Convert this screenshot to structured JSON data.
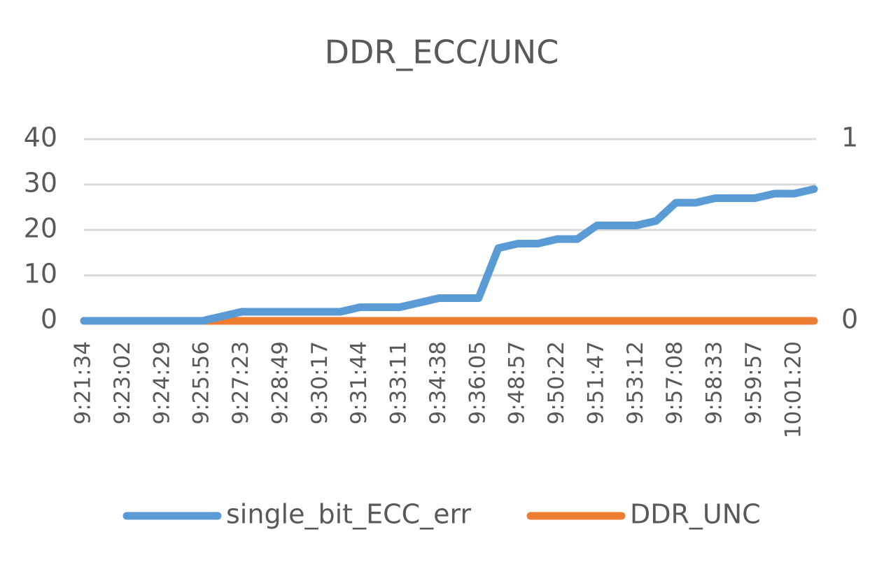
{
  "chart_data": {
    "type": "line",
    "title": "DDR_ECC/UNC",
    "categories": [
      "9:21:34",
      null,
      "9:23:02",
      null,
      "9:24:29",
      null,
      "9:25:56",
      null,
      "9:27:23",
      null,
      "9:28:49",
      null,
      "9:30:17",
      null,
      "9:31:44",
      null,
      "9:33:11",
      null,
      "9:34:38",
      null,
      "9:36:05",
      null,
      "9:48:57",
      null,
      "9:50:22",
      null,
      "9:51:47",
      null,
      "9:53:12",
      null,
      "9:57:08",
      null,
      "9:58:33",
      null,
      "9:59:57",
      null,
      "10:01:20",
      null
    ],
    "series": [
      {
        "name": "single_bit_ECC_err",
        "color": "#5b9bd5",
        "values": [
          0,
          0,
          0,
          0,
          0,
          0,
          0,
          1,
          2,
          2,
          2,
          2,
          2,
          2,
          3,
          3,
          3,
          4,
          5,
          5,
          5,
          16,
          17,
          17,
          18,
          18,
          21,
          21,
          21,
          22,
          26,
          26,
          27,
          27,
          27,
          28,
          28,
          29
        ]
      },
      {
        "name": "DDR_UNC",
        "color": "#ed7d31",
        "axis": "y2",
        "values": [
          0,
          0,
          0,
          0,
          0,
          0,
          0,
          0,
          0,
          0,
          0,
          0,
          0,
          0,
          0,
          0,
          0,
          0,
          0,
          0,
          0,
          0,
          0,
          0,
          0,
          0,
          0,
          0,
          0,
          0,
          0,
          0,
          0,
          0,
          0,
          0,
          0,
          0
        ]
      }
    ],
    "ylim": [
      0,
      40
    ],
    "yticks": [
      0,
      10,
      20,
      30,
      40
    ],
    "y2lim": [
      0,
      1
    ],
    "y2ticks": [
      0,
      1
    ],
    "grid": true,
    "legend": "bottom"
  }
}
